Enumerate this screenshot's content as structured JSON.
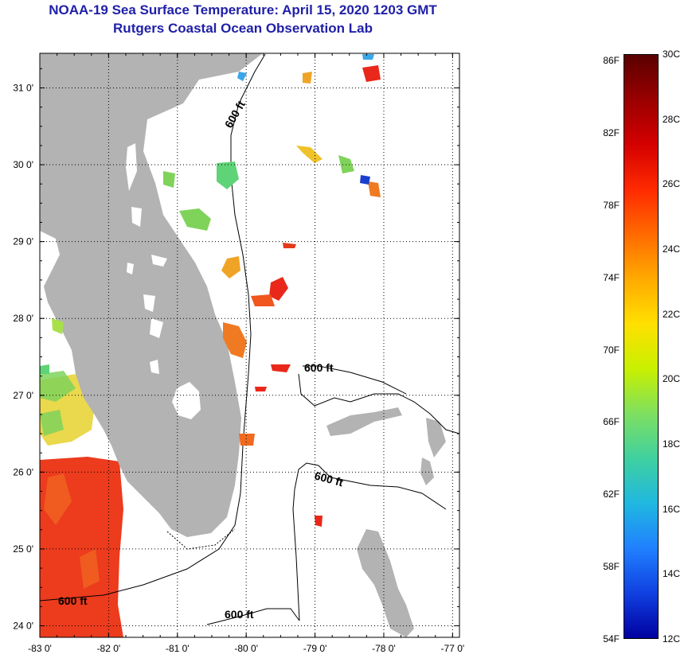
{
  "title": {
    "line1": "NOAA-19 Sea Surface Temperature:  April 15, 2020 1203 GMT",
    "line2": "Rutgers Coastal Ocean Observation Lab"
  },
  "map": {
    "lon_range": [
      -83,
      -76.9
    ],
    "lat_range": [
      23.85,
      31.45
    ],
    "lon_ticks": [
      {
        "value": -83,
        "label": "-83 0'"
      },
      {
        "value": -82,
        "label": "-82 0'"
      },
      {
        "value": -81,
        "label": "-81 0'"
      },
      {
        "value": -80,
        "label": "-80 0'"
      },
      {
        "value": -79,
        "label": "-79 0'"
      },
      {
        "value": -78,
        "label": "-78 0'"
      },
      {
        "value": -77,
        "label": "-77 0'"
      }
    ],
    "lat_ticks": [
      {
        "value": 24,
        "label": "24 0'"
      },
      {
        "value": 25,
        "label": "25 0'"
      },
      {
        "value": 26,
        "label": "26 0'"
      },
      {
        "value": 27,
        "label": "27 0'"
      },
      {
        "value": 28,
        "label": "28 0'"
      },
      {
        "value": 29,
        "label": "29 0'"
      },
      {
        "value": 30,
        "label": "30 0'"
      },
      {
        "value": 31,
        "label": "31 0'"
      }
    ],
    "contour_labels": [
      "600 ft",
      "600 ft",
      "600 ft",
      "600 ft",
      "600 ft"
    ],
    "colors": {
      "land": "#b3b3b3",
      "ocean": "#ffffff",
      "gulf_warm": "#ee3a1c"
    }
  },
  "colorbar": {
    "fahrenheit_labels": [
      "86F",
      "82F",
      "78F",
      "74F",
      "70F",
      "66F",
      "62F",
      "58F",
      "54F"
    ],
    "celsius_labels": [
      "30C",
      "28C",
      "26C",
      "24C",
      "22C",
      "20C",
      "18C",
      "16C",
      "14C",
      "12C"
    ],
    "range_c": [
      12,
      30
    ]
  }
}
